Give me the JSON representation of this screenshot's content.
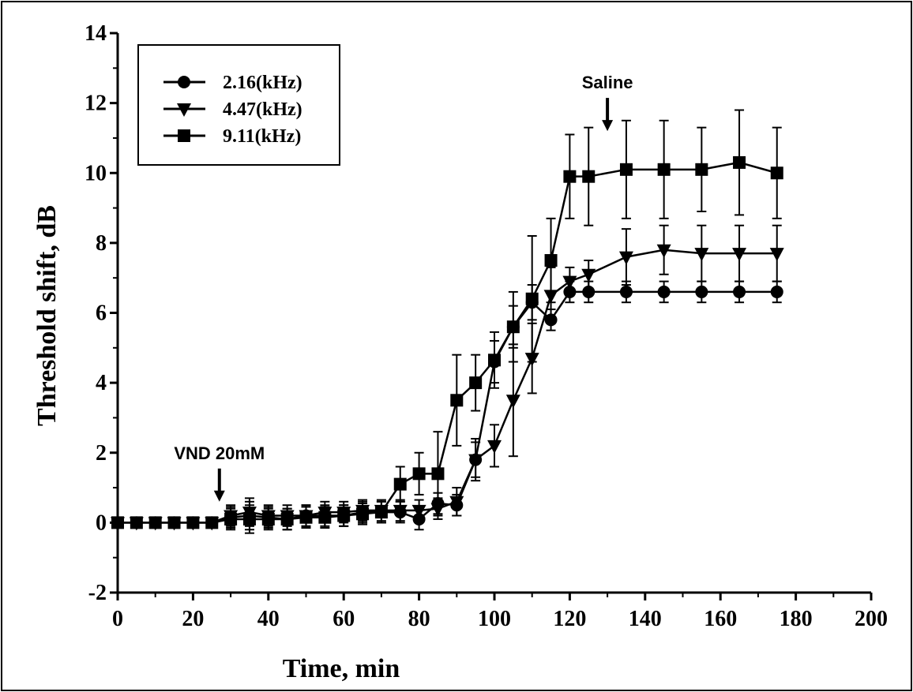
{
  "chart_data": {
    "type": "line",
    "xlabel": "Time, min",
    "ylabel": "Threshold shift, dB",
    "xlim": [
      0,
      200
    ],
    "ylim": [
      -2,
      14
    ],
    "xticks": [
      0,
      20,
      40,
      60,
      80,
      100,
      120,
      140,
      160,
      180,
      200
    ],
    "yticks": [
      -2,
      0,
      2,
      4,
      6,
      8,
      10,
      12,
      14
    ],
    "grid": false,
    "legend_position": "top-left",
    "annotations": [
      {
        "text": "VND 20mM",
        "x": 27,
        "arrow_to_y": 0.6
      },
      {
        "text": "Saline",
        "x": 130,
        "arrow_to_y": 11.2
      }
    ],
    "x": [
      0,
      5,
      10,
      15,
      20,
      25,
      30,
      35,
      40,
      45,
      50,
      55,
      60,
      65,
      70,
      75,
      80,
      85,
      90,
      95,
      100,
      105,
      110,
      115,
      120,
      125,
      135,
      145,
      155,
      165,
      175
    ],
    "series": [
      {
        "name": "2.16(kHz)",
        "marker": "circle",
        "values": [
          0,
          0,
          0,
          0,
          0,
          0,
          0.15,
          0.2,
          0.15,
          0.1,
          0.2,
          0.2,
          0.2,
          0.3,
          0.3,
          0.3,
          0.1,
          0.55,
          0.5,
          1.8,
          4.6,
          5.6,
          6.3,
          5.8,
          6.6,
          6.6,
          6.6,
          6.6,
          6.6,
          6.6,
          6.6
        ],
        "error": [
          0,
          0,
          0,
          0,
          0,
          0,
          0.3,
          0.4,
          0.3,
          0.3,
          0.3,
          0.3,
          0.3,
          0.3,
          0.3,
          0.3,
          0.3,
          0.3,
          0.3,
          0.5,
          0.6,
          0.6,
          0.5,
          0.3,
          0.3,
          0.3,
          0.3,
          0.3,
          0.3,
          0.3,
          0.3
        ]
      },
      {
        "name": "4.47(kHz)",
        "marker": "triangle-down",
        "values": [
          0,
          0,
          0,
          0,
          0,
          0,
          0.2,
          0.3,
          0.2,
          0.2,
          0.2,
          0.3,
          0.3,
          0.35,
          0.35,
          0.35,
          0.35,
          0.4,
          0.6,
          1.8,
          2.2,
          3.5,
          4.7,
          6.5,
          6.9,
          7.1,
          7.6,
          7.8,
          7.7,
          7.7,
          7.7
        ],
        "error": [
          0,
          0,
          0,
          0,
          0,
          0,
          0.3,
          0.4,
          0.3,
          0.3,
          0.3,
          0.3,
          0.3,
          0.3,
          0.3,
          0.3,
          0.3,
          0.3,
          0.4,
          0.6,
          0.6,
          1.6,
          1.0,
          0.8,
          0.4,
          0.4,
          0.8,
          0.7,
          0.8,
          0.8,
          0.8
        ]
      },
      {
        "name": "9.11(kHz)",
        "marker": "square",
        "values": [
          0,
          0,
          0,
          0,
          0,
          0,
          0.1,
          0.1,
          0.1,
          0.1,
          0.15,
          0.15,
          0.2,
          0.25,
          0.3,
          1.1,
          1.4,
          1.4,
          3.5,
          4.0,
          4.65,
          5.6,
          6.4,
          7.5,
          9.9,
          9.9,
          10.1,
          10.1,
          10.1,
          10.3,
          10.0
        ],
        "error": [
          0,
          0,
          0,
          0,
          0,
          0,
          0.3,
          0.4,
          0.3,
          0.3,
          0.3,
          0.3,
          0.3,
          0.3,
          0.3,
          0.5,
          0.6,
          1.2,
          1.3,
          0.8,
          0.8,
          1.0,
          1.8,
          1.2,
          1.2,
          1.4,
          1.4,
          1.4,
          1.2,
          1.5,
          1.3
        ]
      }
    ]
  }
}
